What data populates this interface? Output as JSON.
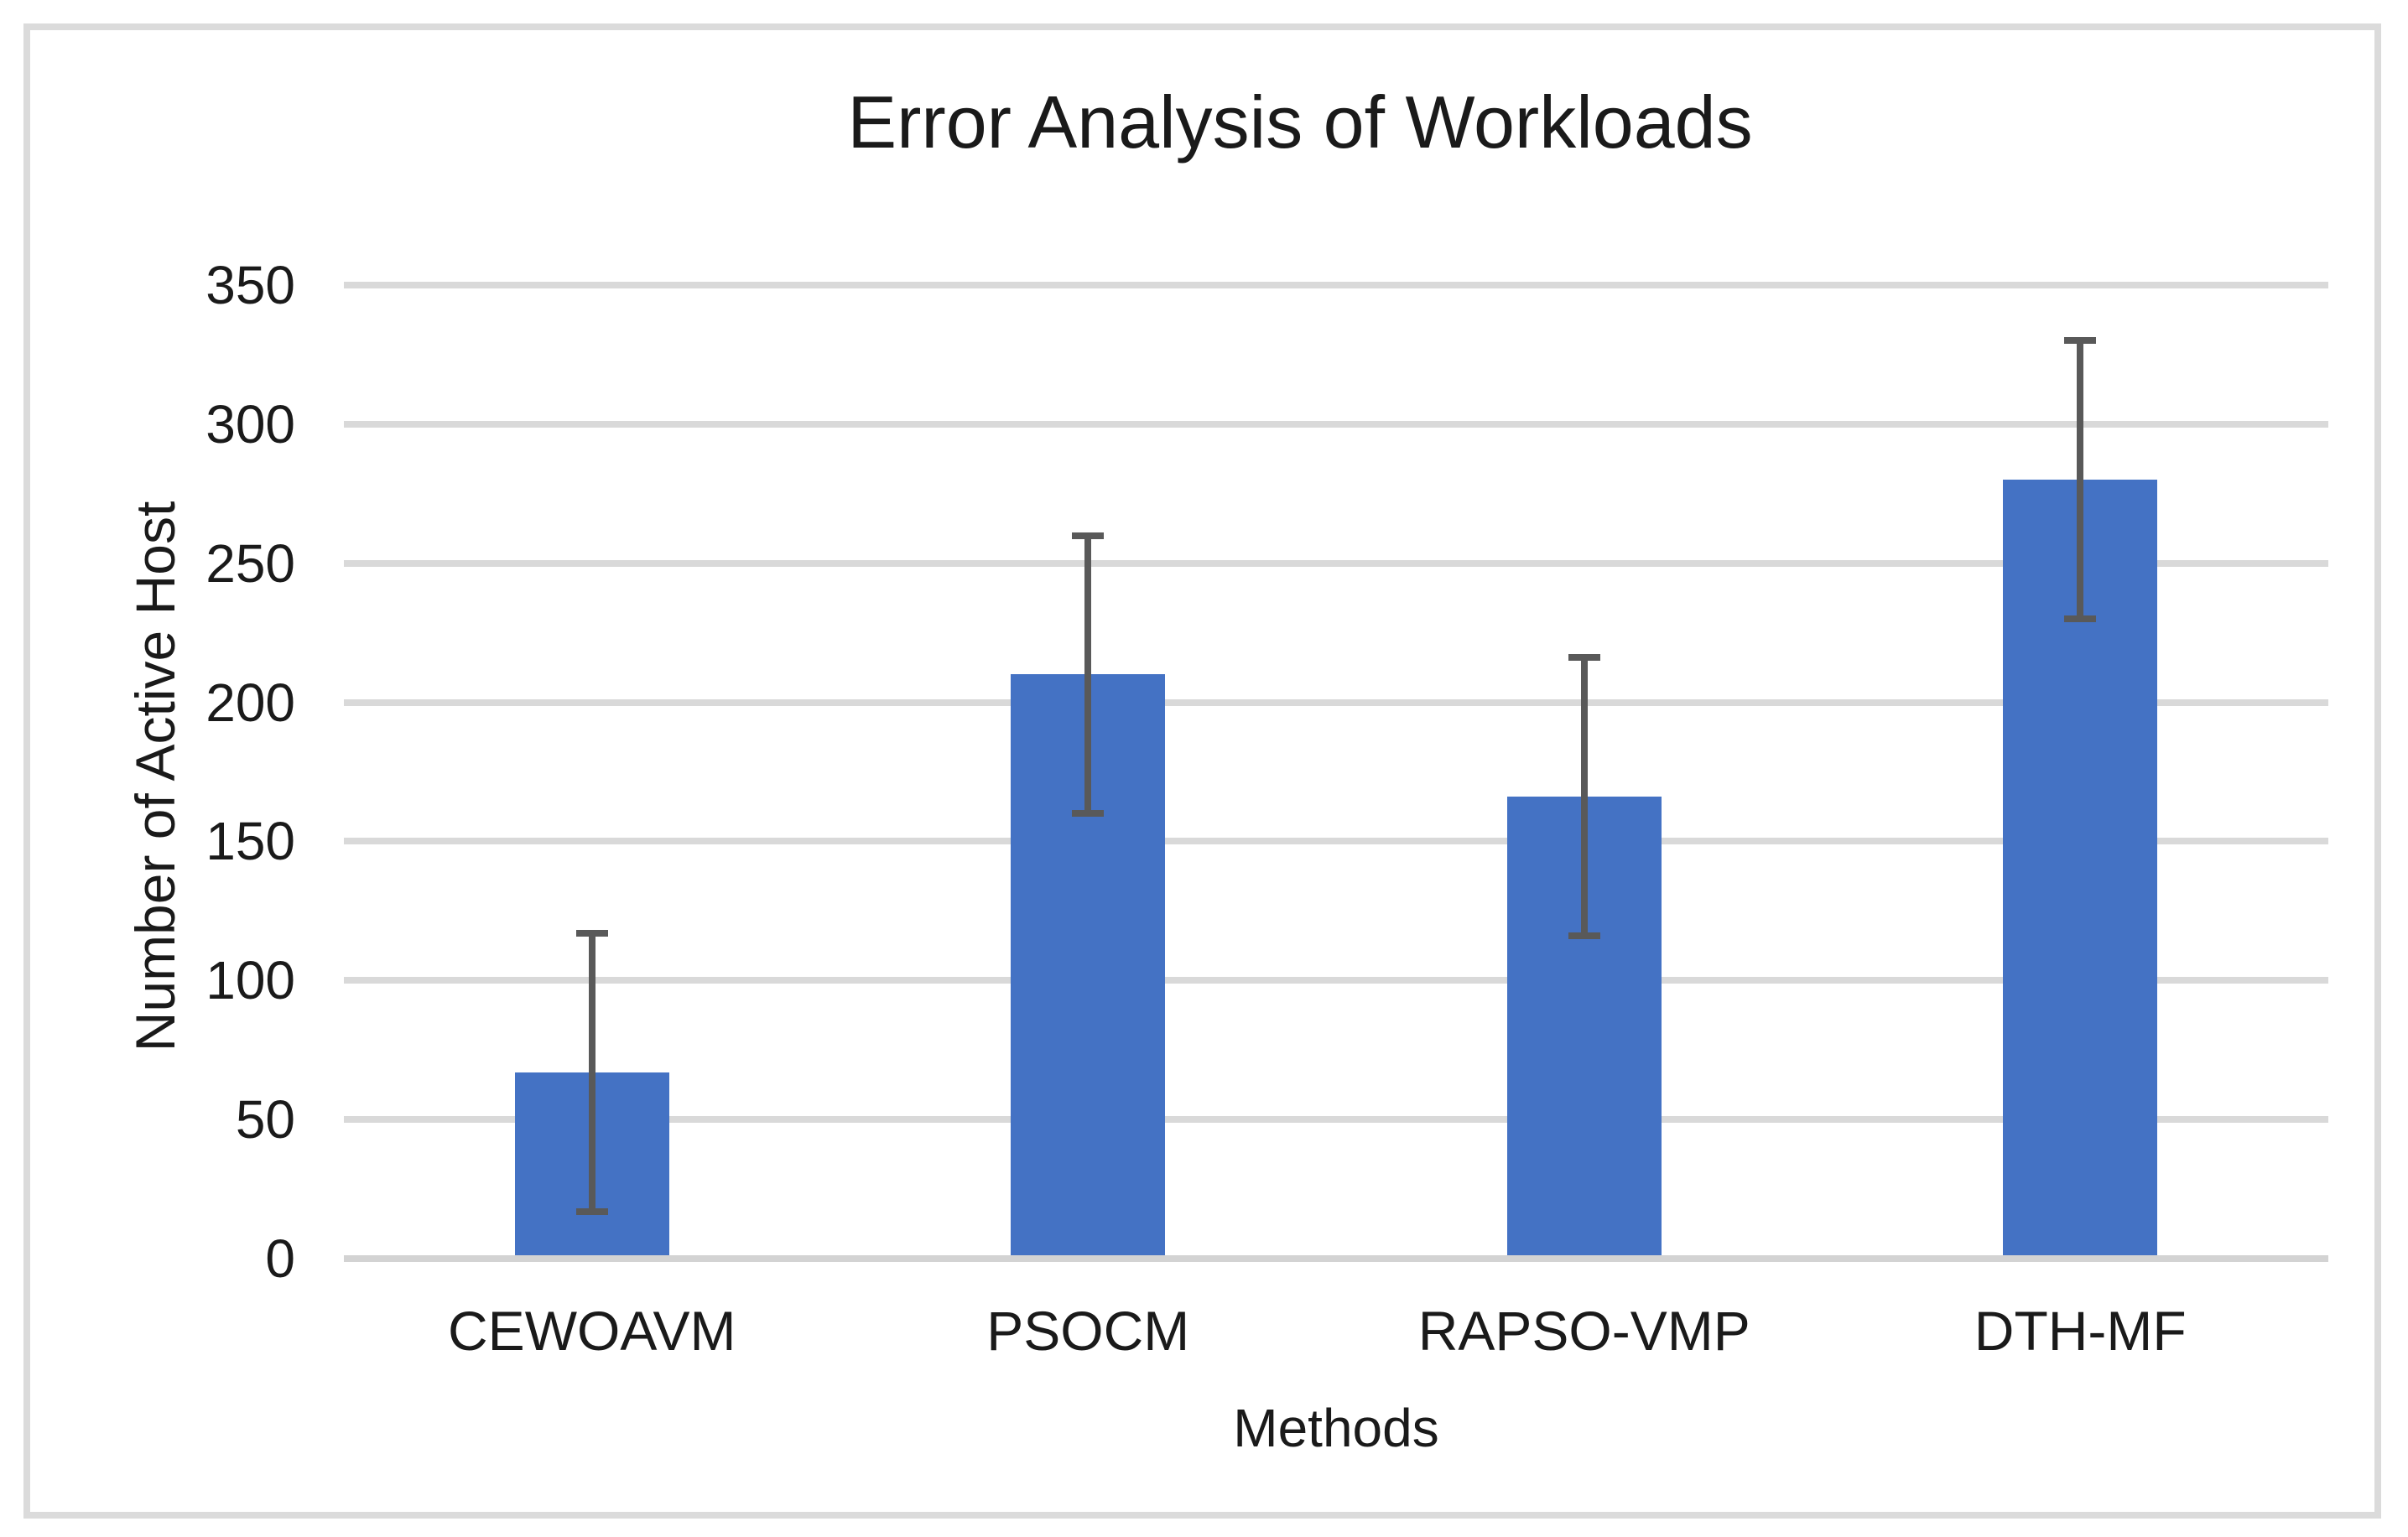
{
  "chart_data": {
    "type": "bar",
    "title": "Error Analysis of Workloads",
    "xlabel": "Methods",
    "ylabel": "Number of Active Host",
    "categories": [
      "CEWOAVM",
      "PSOCM",
      "RAPSO-VMP",
      "DTH-MF"
    ],
    "values": [
      67,
      210,
      166,
      280
    ],
    "error_bars": {
      "symmetric_value": 50,
      "low": [
        17,
        160,
        116,
        230
      ],
      "high": [
        117,
        260,
        216,
        330
      ]
    },
    "yticks": [
      0,
      50,
      100,
      150,
      200,
      250,
      300,
      350
    ],
    "ylim": [
      0,
      350
    ],
    "grid": "horizontal",
    "legend": "none",
    "colors": {
      "bar": "#4472C4",
      "error_bar": "#595959",
      "gridline": "#D9D9D9",
      "axis_line": "#D3D3D3",
      "text": "#1A1A1A",
      "border": "#DBDBDB",
      "background": "#FFFFFF"
    }
  }
}
